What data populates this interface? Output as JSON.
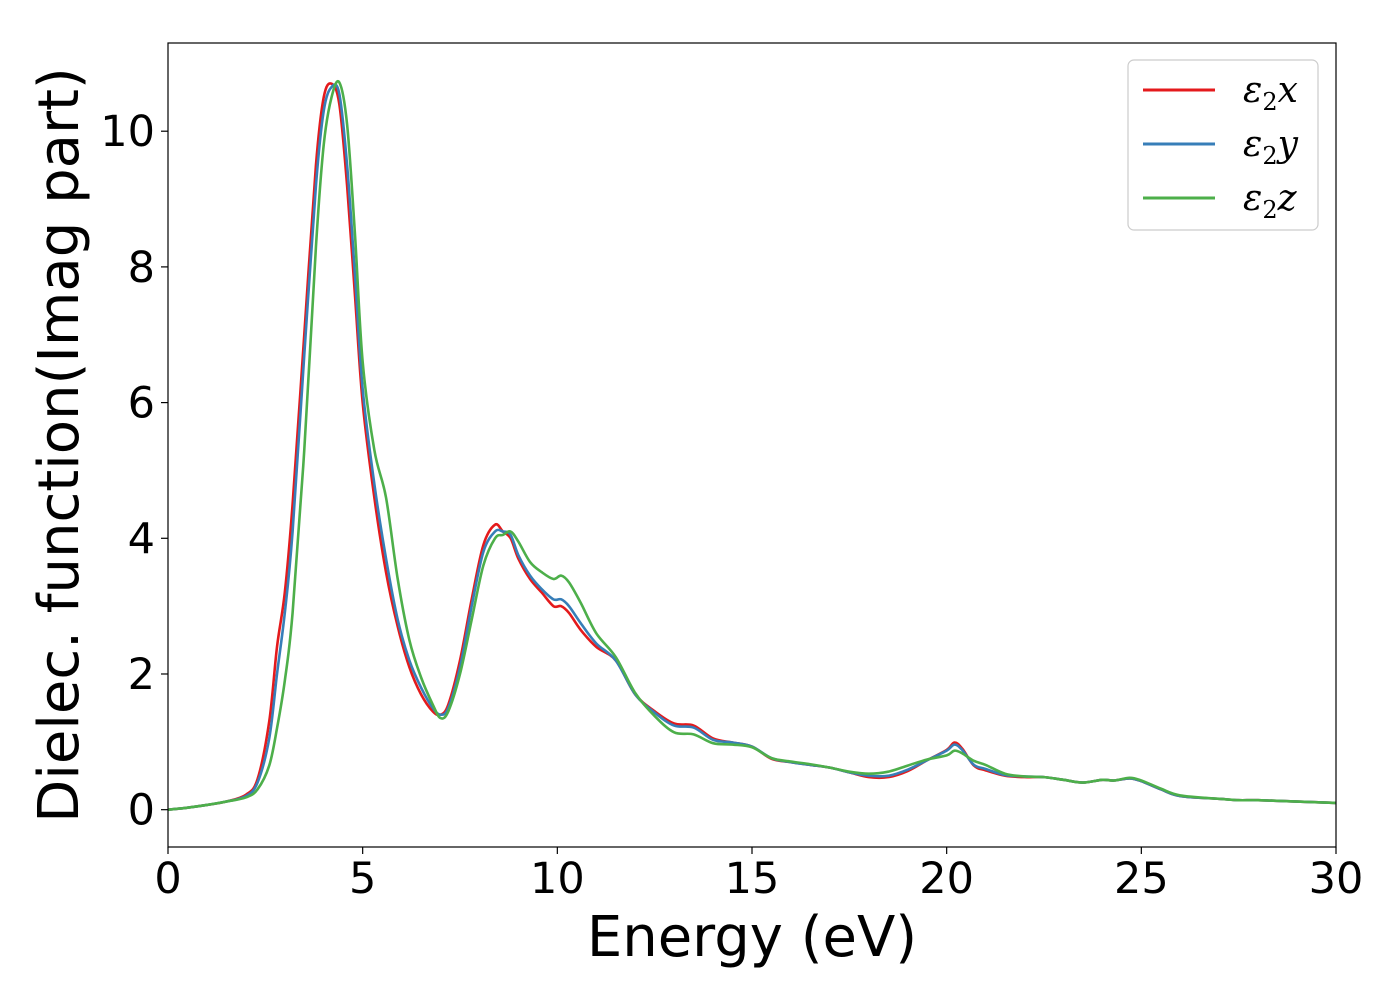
{
  "chart_data": {
    "type": "line",
    "title": "",
    "xlabel": "Energy (eV)",
    "ylabel": "Dielec. function(Imag part)",
    "xlim": [
      0,
      30
    ],
    "ylim": [
      -0.55,
      11.3
    ],
    "xticks": [
      0,
      5,
      10,
      15,
      20,
      25,
      30
    ],
    "xtick_labels": [
      "0",
      "5",
      "10",
      "15",
      "20",
      "25",
      "30"
    ],
    "yticks": [
      0,
      2,
      4,
      6,
      8,
      10
    ],
    "ytick_labels": [
      "0",
      "2",
      "4",
      "6",
      "8",
      "10"
    ],
    "grid": false,
    "legend_position": "top-right",
    "series": [
      {
        "name": "ε2x",
        "legend_base": "ε",
        "legend_sub": "2",
        "legend_suffix": "x",
        "color": "#e41a1c",
        "x": [
          0,
          0.5,
          1,
          1.5,
          2,
          2.3,
          2.6,
          2.8,
          3,
          3.2,
          3.5,
          3.8,
          4,
          4.2,
          4.4,
          4.6,
          4.8,
          5,
          5.3,
          5.6,
          5.9,
          6.2,
          6.5,
          6.8,
          7,
          7.2,
          7.5,
          7.8,
          8.1,
          8.4,
          8.6,
          8.8,
          9,
          9.3,
          9.6,
          9.9,
          10.1,
          10.3,
          10.6,
          11,
          11.5,
          12,
          12.5,
          13,
          13.5,
          14,
          14.5,
          15,
          15.5,
          16,
          16.5,
          17,
          17.5,
          18,
          18.5,
          19,
          19.5,
          20,
          20.2,
          20.4,
          20.7,
          21,
          21.5,
          22,
          22.5,
          23,
          23.5,
          24,
          24.3,
          24.7,
          25,
          25.5,
          26,
          27,
          27.5,
          28,
          29,
          30
        ],
        "values": [
          0.0,
          0.03,
          0.07,
          0.12,
          0.22,
          0.45,
          1.3,
          2.4,
          3.2,
          4.5,
          7.0,
          9.5,
          10.5,
          10.7,
          10.4,
          9.2,
          7.6,
          6.0,
          4.6,
          3.5,
          2.7,
          2.1,
          1.7,
          1.45,
          1.4,
          1.55,
          2.2,
          3.1,
          3.9,
          4.2,
          4.1,
          4.0,
          3.7,
          3.4,
          3.2,
          3.0,
          3.0,
          2.9,
          2.65,
          2.4,
          2.2,
          1.7,
          1.45,
          1.27,
          1.24,
          1.05,
          0.99,
          0.93,
          0.75,
          0.7,
          0.66,
          0.62,
          0.55,
          0.48,
          0.48,
          0.57,
          0.73,
          0.88,
          0.99,
          0.9,
          0.65,
          0.58,
          0.5,
          0.48,
          0.48,
          0.44,
          0.4,
          0.44,
          0.43,
          0.46,
          0.42,
          0.3,
          0.2,
          0.16,
          0.14,
          0.14,
          0.12,
          0.1
        ]
      },
      {
        "name": "ε2y",
        "legend_base": "ε",
        "legend_sub": "2",
        "legend_suffix": "y",
        "color": "#377eb8",
        "x": [
          0,
          0.5,
          1,
          1.5,
          2,
          2.3,
          2.6,
          2.8,
          3,
          3.2,
          3.5,
          3.8,
          4,
          4.2,
          4.4,
          4.6,
          4.8,
          5,
          5.3,
          5.6,
          5.9,
          6.2,
          6.5,
          6.8,
          7,
          7.2,
          7.5,
          7.8,
          8.1,
          8.4,
          8.6,
          8.8,
          9,
          9.3,
          9.6,
          9.9,
          10.1,
          10.3,
          10.6,
          11,
          11.5,
          12,
          12.5,
          13,
          13.5,
          14,
          14.5,
          15,
          15.5,
          16,
          16.5,
          17,
          17.5,
          18,
          18.5,
          19,
          19.5,
          20,
          20.2,
          20.4,
          20.7,
          21,
          21.5,
          22,
          22.5,
          23,
          23.5,
          24,
          24.3,
          24.7,
          25,
          25.5,
          26,
          27,
          27.5,
          28,
          29,
          30
        ],
        "values": [
          0.0,
          0.03,
          0.07,
          0.12,
          0.2,
          0.4,
          1.05,
          2.0,
          2.9,
          4.1,
          6.7,
          9.2,
          10.3,
          10.65,
          10.55,
          9.5,
          7.9,
          6.2,
          4.8,
          3.7,
          2.8,
          2.2,
          1.8,
          1.5,
          1.4,
          1.5,
          2.1,
          3.0,
          3.8,
          4.1,
          4.1,
          4.05,
          3.75,
          3.45,
          3.25,
          3.1,
          3.1,
          3.0,
          2.75,
          2.45,
          2.2,
          1.7,
          1.43,
          1.24,
          1.21,
          1.03,
          0.99,
          0.93,
          0.76,
          0.7,
          0.66,
          0.62,
          0.55,
          0.5,
          0.5,
          0.59,
          0.73,
          0.87,
          0.96,
          0.88,
          0.66,
          0.6,
          0.51,
          0.49,
          0.48,
          0.44,
          0.4,
          0.44,
          0.43,
          0.46,
          0.42,
          0.3,
          0.2,
          0.16,
          0.14,
          0.14,
          0.12,
          0.1
        ]
      },
      {
        "name": "ε2z",
        "legend_base": "ε",
        "legend_sub": "2",
        "legend_suffix": "z",
        "color": "#4daf4a",
        "x": [
          0,
          0.5,
          1,
          1.5,
          2,
          2.3,
          2.6,
          2.8,
          3,
          3.2,
          3.5,
          3.8,
          4,
          4.2,
          4.4,
          4.6,
          4.8,
          5,
          5.3,
          5.6,
          5.9,
          6.2,
          6.5,
          6.8,
          7,
          7.2,
          7.5,
          7.8,
          8.1,
          8.4,
          8.6,
          8.8,
          9,
          9.3,
          9.6,
          9.9,
          10.1,
          10.3,
          10.6,
          11,
          11.5,
          12,
          12.5,
          13,
          13.5,
          14,
          14.5,
          15,
          15.5,
          16,
          16.5,
          17,
          17.5,
          18,
          18.5,
          19,
          19.5,
          20,
          20.2,
          20.4,
          20.7,
          21,
          21.5,
          22,
          22.5,
          23,
          23.5,
          24,
          24.3,
          24.7,
          25,
          25.5,
          26,
          27,
          27.5,
          28,
          29,
          30
        ],
        "values": [
          0.0,
          0.03,
          0.07,
          0.12,
          0.18,
          0.3,
          0.65,
          1.2,
          1.9,
          2.9,
          5.3,
          8.3,
          9.8,
          10.5,
          10.72,
          10.1,
          8.5,
          6.6,
          5.3,
          4.6,
          3.4,
          2.5,
          1.95,
          1.55,
          1.35,
          1.45,
          2.0,
          2.8,
          3.6,
          4.0,
          4.05,
          4.1,
          3.95,
          3.65,
          3.5,
          3.4,
          3.45,
          3.35,
          3.05,
          2.6,
          2.25,
          1.72,
          1.38,
          1.14,
          1.11,
          0.98,
          0.96,
          0.92,
          0.76,
          0.71,
          0.67,
          0.62,
          0.56,
          0.53,
          0.56,
          0.65,
          0.74,
          0.8,
          0.87,
          0.83,
          0.72,
          0.66,
          0.53,
          0.49,
          0.48,
          0.44,
          0.4,
          0.44,
          0.43,
          0.47,
          0.43,
          0.31,
          0.21,
          0.16,
          0.14,
          0.14,
          0.12,
          0.1
        ]
      }
    ]
  }
}
